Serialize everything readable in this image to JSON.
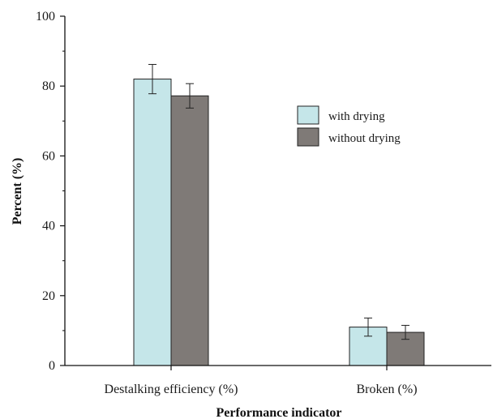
{
  "chart_data": {
    "type": "bar",
    "xlabel": "Performance indicator",
    "ylabel": "Percent (%)",
    "ylim": [
      0,
      100
    ],
    "yticks": [
      0,
      20,
      40,
      60,
      80,
      100
    ],
    "categories": [
      "Destalking efficiency (%)",
      "Broken (%)"
    ],
    "series": [
      {
        "name": "with drying",
        "values": [
          82.0,
          11.0
        ],
        "errors": [
          4.2,
          2.6
        ],
        "color": "#c5e6e9"
      },
      {
        "name": "without drying",
        "values": [
          77.2,
          9.5
        ],
        "errors": [
          3.5,
          2.0
        ],
        "color": "#7f7a77"
      }
    ],
    "grid": false,
    "legend_position": "upper-right"
  }
}
